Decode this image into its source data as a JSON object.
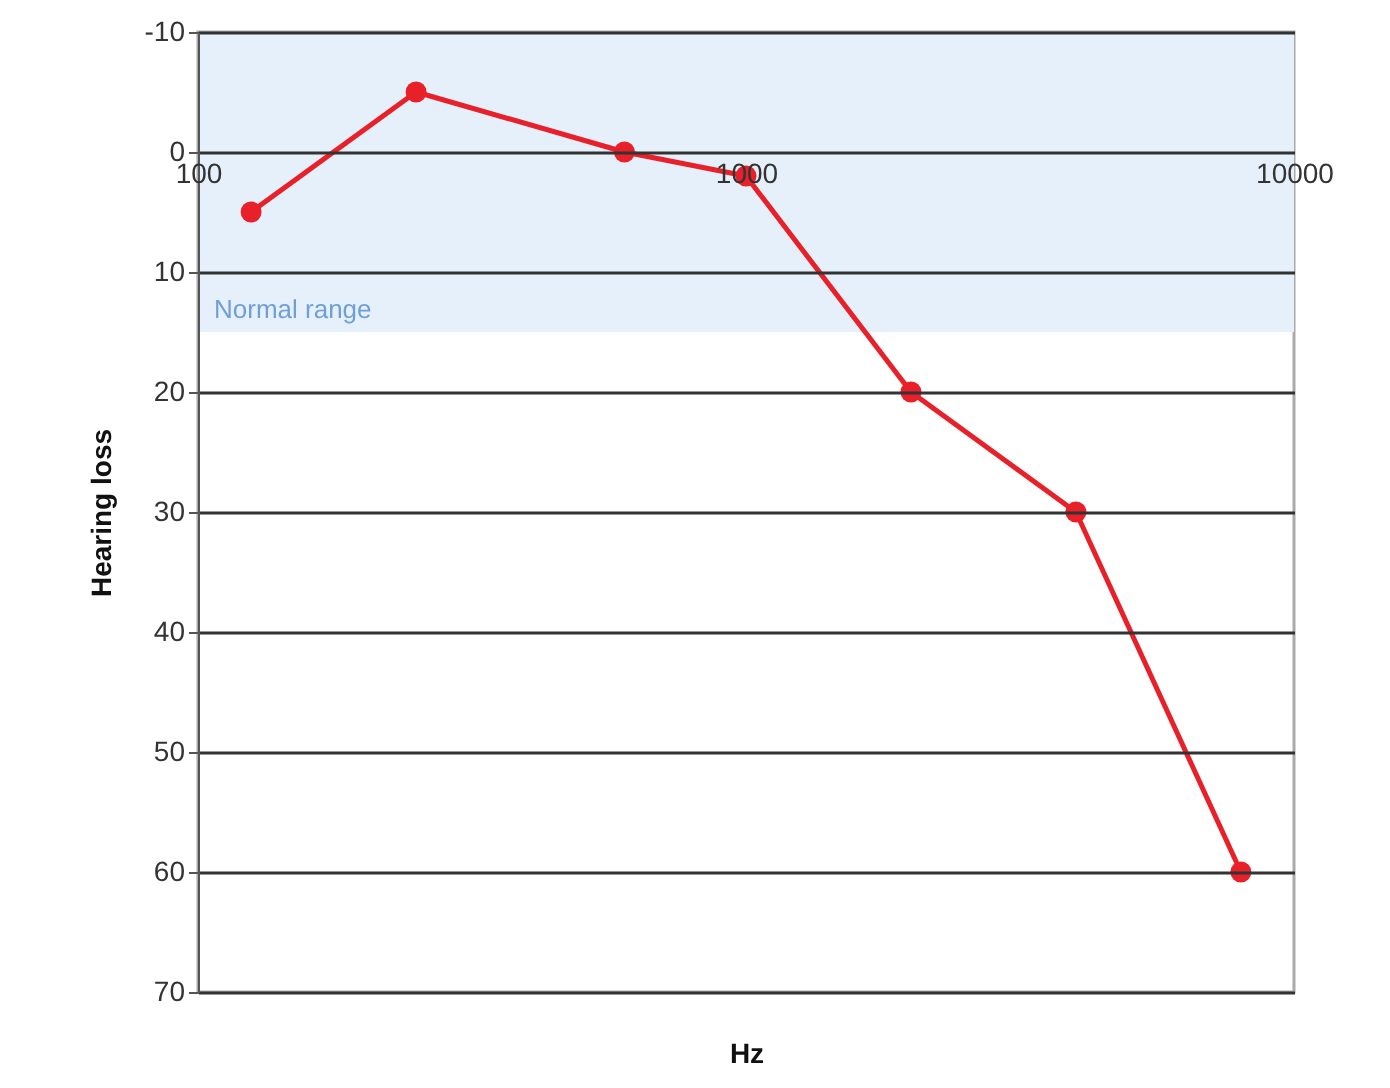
{
  "chart_data": {
    "type": "line",
    "xlabel": "Hz",
    "ylabel": "Hearing loss",
    "x": [
      125,
      250,
      600,
      1000,
      2000,
      4000,
      8000
    ],
    "series": [
      {
        "color": "#e8202a",
        "values": [
          5,
          -5,
          0,
          2,
          20,
          30,
          60
        ]
      }
    ],
    "log": "x",
    "xlim": [
      100,
      10000
    ],
    "xticks": [
      100,
      1000,
      10000
    ],
    "ylim": [
      70,
      -10
    ],
    "yticks": [
      -10,
      0,
      10,
      20,
      30,
      40,
      50,
      60,
      70
    ],
    "bands": [
      {
        "axis": "y",
        "from": -10,
        "to": 15,
        "label": "Normal range",
        "color": "#e6f0fa"
      }
    ],
    "grid": "y",
    "marker": "circle",
    "line_style": "solid"
  }
}
